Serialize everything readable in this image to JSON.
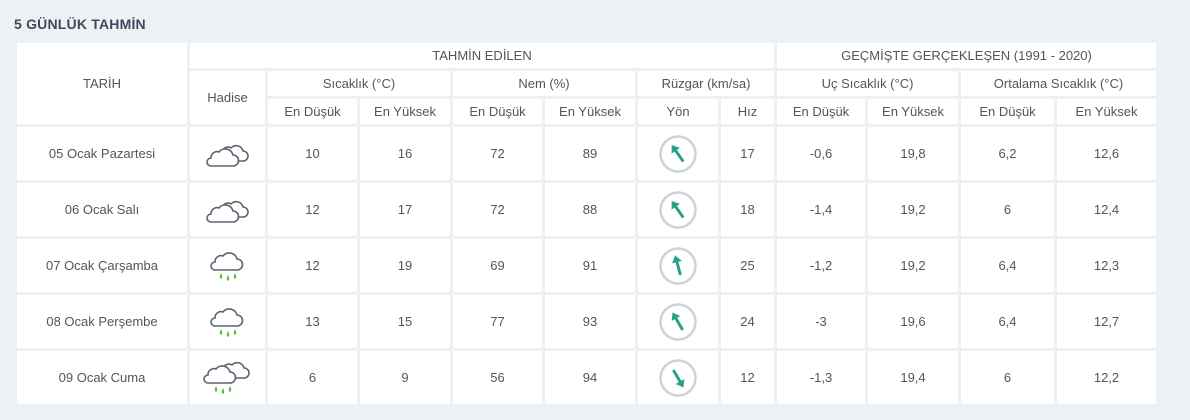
{
  "title": "5 GÜNLÜK TAHMİN",
  "headers": {
    "date": "TARİH",
    "event": "Hadise",
    "forecast": "TAHMİN EDİLEN",
    "past": "GEÇMİŞTE GERÇEKLEŞEN (1991 - 2020)",
    "temp": "Sıcaklık (°C)",
    "humidity": "Nem (%)",
    "wind": "Rüzgar (km/sa)",
    "extreme_temp": "Uç Sıcaklık (°C)",
    "avg_temp": "Ortalama Sıcaklık (°C)",
    "low": "En Düşük",
    "high": "En Yüksek",
    "direction": "Yön",
    "speed": "Hız"
  },
  "rows": [
    {
      "date": "05 Ocak Pazartesi",
      "icon": "cloudy-icon",
      "temp_low": "10",
      "temp_high": "16",
      "hum_low": "72",
      "hum_high": "89",
      "wind_speed": "17",
      "wind_dir_deg": -35,
      "ext_low": "-0,6",
      "ext_high": "19,8",
      "avg_low": "6,2",
      "avg_high": "12,6"
    },
    {
      "date": "06 Ocak Salı",
      "icon": "cloudy-icon",
      "temp_low": "12",
      "temp_high": "17",
      "hum_low": "72",
      "hum_high": "88",
      "wind_speed": "18",
      "wind_dir_deg": -35,
      "ext_low": "-1,4",
      "ext_high": "19,2",
      "avg_low": "6",
      "avg_high": "12,4"
    },
    {
      "date": "07 Ocak Çarşamba",
      "icon": "rain-icon",
      "temp_low": "12",
      "temp_high": "19",
      "hum_low": "69",
      "hum_high": "91",
      "wind_speed": "25",
      "wind_dir_deg": -15,
      "ext_low": "-1,2",
      "ext_high": "19,2",
      "avg_low": "6,4",
      "avg_high": "12,3"
    },
    {
      "date": "08 Ocak Perşembe",
      "icon": "rain-icon",
      "temp_low": "13",
      "temp_high": "15",
      "hum_low": "77",
      "hum_high": "93",
      "wind_speed": "24",
      "wind_dir_deg": -30,
      "ext_low": "-3",
      "ext_high": "19,6",
      "avg_low": "6,4",
      "avg_high": "12,7"
    },
    {
      "date": "09 Ocak Cuma",
      "icon": "cloudy-rain-icon",
      "temp_low": "6",
      "temp_high": "9",
      "hum_low": "56",
      "hum_high": "94",
      "wind_speed": "12",
      "wind_dir_deg": 150,
      "ext_low": "-1,3",
      "ext_high": "19,4",
      "avg_low": "6",
      "avg_high": "12,2"
    }
  ],
  "colors": {
    "low": "#2e93b8",
    "high": "#d9384f",
    "hum_low": "#e69a2b",
    "hum_high": "#7d6fb0",
    "wind": "#2aa08a"
  }
}
